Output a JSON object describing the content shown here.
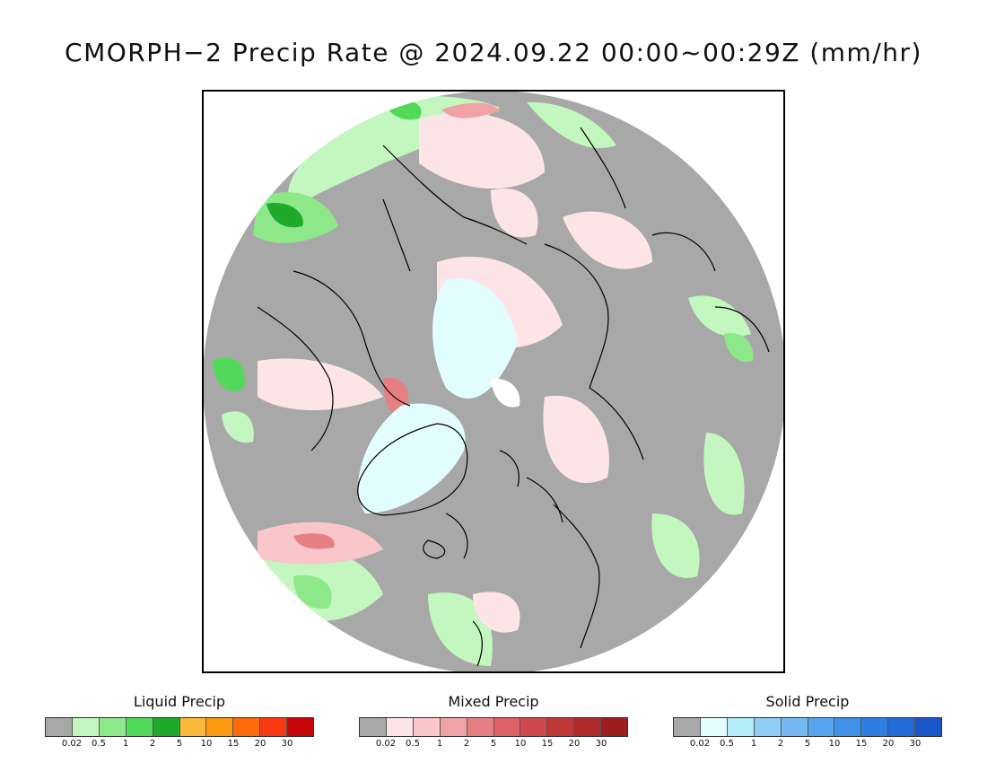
{
  "title": "CMORPH−2 Precip Rate @ 2024.09.22 00:00~00:29Z (mm/hr)",
  "legends": [
    {
      "label": "Liquid Precip",
      "colors": [
        "#a8a8a8",
        "#c4f7c0",
        "#8de88a",
        "#52d95a",
        "#1faa2c",
        "#fbb93a",
        "#fb9a10",
        "#fb6b0e",
        "#f93a10",
        "#c80808"
      ],
      "ticks": [
        "0.02",
        "0.5",
        "1",
        "2",
        "5",
        "10",
        "15",
        "20",
        "30"
      ]
    },
    {
      "label": "Mixed Precip",
      "colors": [
        "#a8a8a8",
        "#fde4e6",
        "#f9c6ca",
        "#f0a2a6",
        "#e67f83",
        "#dd6164",
        "#d04a4d",
        "#c13839",
        "#b12a2b",
        "#9c1d1e"
      ],
      "ticks": [
        "0.02",
        "0.5",
        "1",
        "2",
        "5",
        "10",
        "15",
        "20",
        "30"
      ]
    },
    {
      "label": "Solid Precip",
      "colors": [
        "#a8a8a8",
        "#e2fdff",
        "#b3ecf8",
        "#8fcdf4",
        "#74b9f1",
        "#55a5ee",
        "#3e92ea",
        "#2f7fe3",
        "#236bd8",
        "#1a57c8"
      ],
      "ticks": [
        "0.02",
        "0.5",
        "1",
        "2",
        "5",
        "10",
        "15",
        "20",
        "30"
      ]
    }
  ],
  "map": {
    "projection": "north polar stereographic",
    "background_color": "#a8a8a8",
    "coastline_color": "#000000"
  }
}
